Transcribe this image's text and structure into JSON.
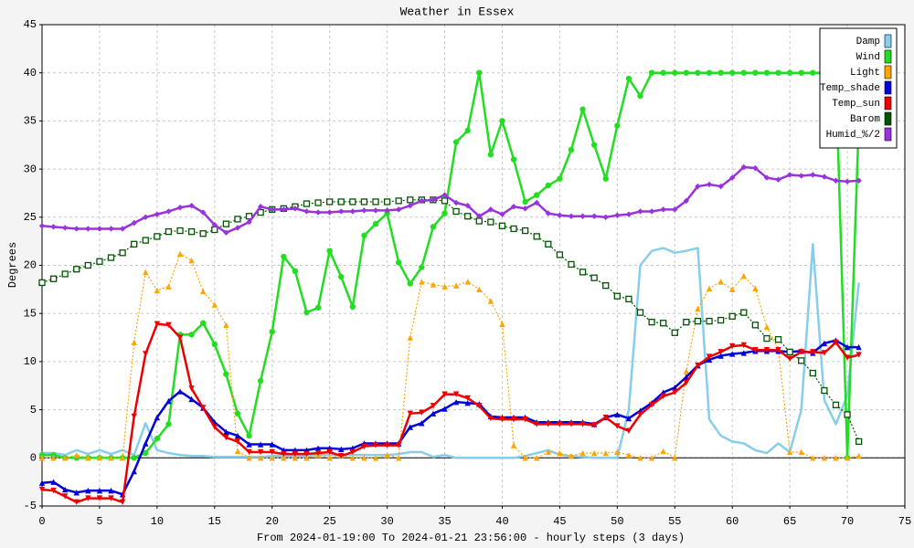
{
  "chart_data": {
    "type": "line",
    "title": "Weather in Essex",
    "ylabel": "Degrees",
    "xlabel": "From 2024-01-19:00 To 2024-01-21 23:56:00 - hourly steps (3 days)",
    "x": [
      0,
      1,
      2,
      3,
      4,
      5,
      6,
      7,
      8,
      9,
      10,
      11,
      12,
      13,
      14,
      15,
      16,
      17,
      18,
      19,
      20,
      21,
      22,
      23,
      24,
      25,
      26,
      27,
      28,
      29,
      30,
      31,
      32,
      33,
      34,
      35,
      36,
      37,
      38,
      39,
      40,
      41,
      42,
      43,
      44,
      45,
      46,
      47,
      48,
      49,
      50,
      51,
      52,
      53,
      54,
      55,
      56,
      57,
      58,
      59,
      60,
      61,
      62,
      63,
      64,
      65,
      66,
      67,
      68,
      69,
      70,
      71
    ],
    "xlim": [
      0,
      75
    ],
    "xticks": [
      0,
      5,
      10,
      15,
      20,
      25,
      30,
      35,
      40,
      45,
      50,
      55,
      60,
      65,
      70,
      75
    ],
    "ylim": [
      -5,
      45
    ],
    "yticks": [
      -5,
      0,
      5,
      10,
      15,
      20,
      25,
      30,
      35,
      40,
      45
    ],
    "grid": true,
    "legend": "upper right",
    "series": [
      {
        "name": "Damp",
        "color": "#87ceeb",
        "marker": "none",
        "dashed": false,
        "values": [
          0.5,
          0.5,
          0.3,
          0.8,
          0.4,
          0.8,
          0.4,
          0.8,
          0.3,
          3.6,
          0.8,
          0.5,
          0.3,
          0.2,
          0.2,
          0.1,
          0.1,
          0.1,
          0.1,
          0.1,
          0.2,
          0.2,
          0.2,
          0.2,
          0.3,
          0.3,
          0.3,
          0.3,
          0.3,
          0.3,
          0.3,
          0.4,
          0.6,
          0.6,
          0.1,
          0.3,
          0,
          0,
          0,
          0,
          0,
          0,
          0.2,
          0.5,
          0.8,
          0.3,
          0.2,
          0.1,
          0,
          0,
          0,
          5,
          20,
          21.5,
          21.8,
          21.3,
          21.5,
          21.8,
          4,
          2.3,
          1.7,
          1.5,
          0.8,
          0.5,
          1.5,
          0.6,
          5,
          22.2,
          6,
          3.5,
          6.5,
          18.2
        ]
      },
      {
        "name": "Wind",
        "color": "#22dd22",
        "marker": "circle",
        "dashed": false,
        "values": [
          0.3,
          0.3,
          0,
          0,
          0,
          0,
          0,
          0,
          0,
          0.5,
          2,
          3.5,
          12.8,
          12.8,
          14,
          11.8,
          8.7,
          4.6,
          2.3,
          8,
          13.1,
          20.9,
          19.4,
          15.1,
          15.6,
          21.5,
          18.8,
          15.7,
          23.1,
          24.3,
          25.4,
          20.3,
          18.1,
          19.8,
          24,
          25.4,
          32.8,
          34,
          40,
          31.5,
          35,
          31,
          26.6,
          27.3,
          28.3,
          29,
          32,
          36.2,
          32.5,
          29,
          34.5,
          39.4,
          37.6,
          40,
          40,
          40,
          40,
          40,
          40,
          40,
          40,
          40,
          40,
          40,
          40,
          40,
          40,
          40,
          40,
          40,
          0,
          35
        ]
      },
      {
        "name": "Light",
        "color": "#ffa500",
        "marker": "triangle",
        "dashed": true,
        "values": [
          0,
          0,
          0,
          0.3,
          0,
          0,
          0,
          0,
          12,
          19.3,
          17.4,
          17.8,
          21.2,
          20.5,
          17.3,
          15.9,
          13.8,
          0.7,
          0,
          0,
          0,
          0,
          0,
          0,
          0.3,
          0,
          0.3,
          0,
          0,
          0,
          0.3,
          0,
          12.5,
          18.3,
          18,
          17.8,
          17.9,
          18.3,
          17.5,
          16.3,
          13.9,
          1.3,
          0,
          0,
          0.6,
          0.5,
          0.2,
          0.5,
          0.5,
          0.5,
          0.6,
          0.3,
          0,
          0,
          0.7,
          0,
          9,
          15.5,
          17.6,
          18.3,
          17.5,
          18.9,
          17.6,
          13.6,
          11.3,
          0.6,
          0.6,
          0,
          0,
          0,
          0,
          0.2
        ]
      },
      {
        "name": "Temp_shade",
        "color": "#0000dd",
        "marker": "triangle",
        "dashed": false,
        "values": [
          -2.6,
          -2.5,
          -3.3,
          -3.6,
          -3.4,
          -3.4,
          -3.4,
          -3.8,
          -1.4,
          1.5,
          4.2,
          5.9,
          6.9,
          6.1,
          5.2,
          3.7,
          2.7,
          2.3,
          1.4,
          1.4,
          1.4,
          0.8,
          0.8,
          0.8,
          1,
          1,
          0.9,
          1,
          1.5,
          1.5,
          1.5,
          1.5,
          3.2,
          3.6,
          4.6,
          5.1,
          5.8,
          5.7,
          5.6,
          4.3,
          4.2,
          4.2,
          4.2,
          3.7,
          3.7,
          3.7,
          3.7,
          3.7,
          3.5,
          4.2,
          4.5,
          4.1,
          4.9,
          5.7,
          6.8,
          7.3,
          8.4,
          9.6,
          10.2,
          10.6,
          10.8,
          10.9,
          11.1,
          11.1,
          11.1,
          11,
          11.1,
          10.9,
          11.9,
          12.2,
          11.5,
          11.5
        ]
      },
      {
        "name": "Temp_sun",
        "color": "#ee0000",
        "marker": "triangle-down",
        "dashed": false,
        "values": [
          -3.3,
          -3.4,
          -4,
          -4.6,
          -4.2,
          -4.2,
          -4.2,
          -4.6,
          4.3,
          10.8,
          13.9,
          13.8,
          12.5,
          7.2,
          5.2,
          3.2,
          2.1,
          1.7,
          0.6,
          0.6,
          0.6,
          0.4,
          0.4,
          0.4,
          0.5,
          0.6,
          0.2,
          0.6,
          1.2,
          1.3,
          1.3,
          1.3,
          4.6,
          4.7,
          5.4,
          6.6,
          6.6,
          6.2,
          5.4,
          4.1,
          4,
          4,
          4,
          3.5,
          3.5,
          3.5,
          3.5,
          3.5,
          3.4,
          4.2,
          3.3,
          2.8,
          4.5,
          5.5,
          6.4,
          6.8,
          7.8,
          9.6,
          10.5,
          11,
          11.6,
          11.7,
          11.2,
          11.2,
          11.2,
          10.3,
          11,
          11,
          10.9,
          12,
          10.4,
          10.7
        ]
      },
      {
        "name": "Barom",
        "color": "#005500",
        "marker": "square-open",
        "dashed": true,
        "values": [
          18.2,
          18.6,
          19.1,
          19.6,
          20,
          20.4,
          20.8,
          21.3,
          22.2,
          22.6,
          23,
          23.5,
          23.6,
          23.5,
          23.3,
          23.7,
          24.3,
          24.8,
          25.1,
          25.5,
          25.8,
          25.9,
          26.1,
          26.4,
          26.5,
          26.6,
          26.6,
          26.6,
          26.6,
          26.6,
          26.6,
          26.7,
          26.8,
          26.8,
          26.8,
          26.7,
          25.6,
          25.1,
          24.6,
          24.5,
          24.1,
          23.8,
          23.6,
          23,
          22.2,
          21.1,
          20.1,
          19.3,
          18.7,
          17.9,
          16.8,
          16.5,
          15.1,
          14.1,
          14,
          13,
          14.1,
          14.2,
          14.2,
          14.3,
          14.7,
          15.1,
          13.8,
          12.4,
          12.3,
          11,
          10.1,
          8.8,
          7,
          5.5,
          4.5,
          1.7
        ]
      },
      {
        "name": "Humid_%/2",
        "color": "#9933dd",
        "marker": "diamond",
        "dashed": false,
        "values": [
          24.1,
          24,
          23.9,
          23.8,
          23.8,
          23.8,
          23.8,
          23.8,
          24.4,
          25,
          25.3,
          25.6,
          26,
          26.2,
          25.5,
          24.2,
          23.4,
          23.9,
          24.5,
          26.1,
          25.8,
          25.8,
          25.9,
          25.6,
          25.5,
          25.5,
          25.6,
          25.6,
          25.7,
          25.7,
          25.7,
          25.8,
          26.2,
          26.7,
          26.8,
          27.3,
          26.5,
          26.2,
          25.1,
          25.8,
          25.3,
          26.1,
          25.9,
          26.5,
          25.4,
          25.2,
          25.1,
          25.1,
          25.1,
          25,
          25.2,
          25.3,
          25.6,
          25.6,
          25.8,
          25.8,
          26.7,
          28.2,
          28.4,
          28.2,
          29.1,
          30.2,
          30.1,
          29.1,
          28.9,
          29.4,
          29.3,
          29.4,
          29.2,
          28.8,
          28.7,
          28.8
        ]
      }
    ]
  }
}
